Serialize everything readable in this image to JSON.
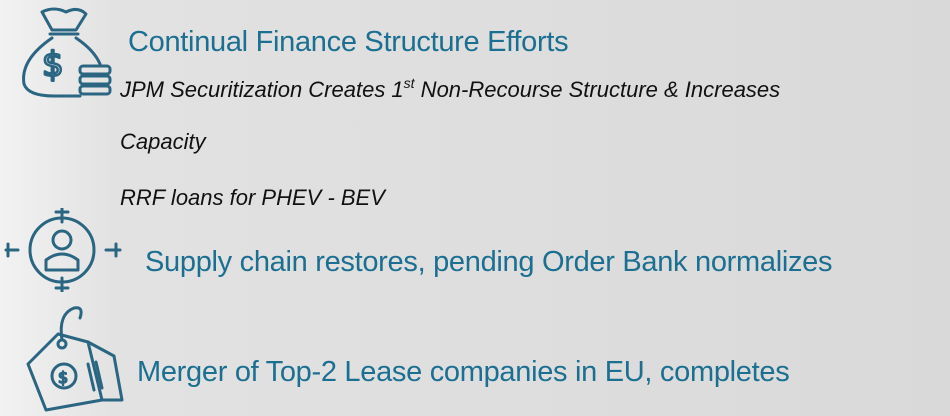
{
  "items": [
    {
      "heading": "Continual Finance Structure Efforts",
      "details": [
        {
          "text": "JPM Securitization Creates 1",
          "sup": "st",
          "rest": " Non-Recourse Structure & Increases Capacity"
        },
        {
          "text": "RRF loans for PHEV - BEV"
        }
      ]
    },
    {
      "heading": "Supply chain restores, pending Order Bank normalizes"
    },
    {
      "heading": "Merger of Top-2 Lease companies in EU, completes"
    }
  ]
}
